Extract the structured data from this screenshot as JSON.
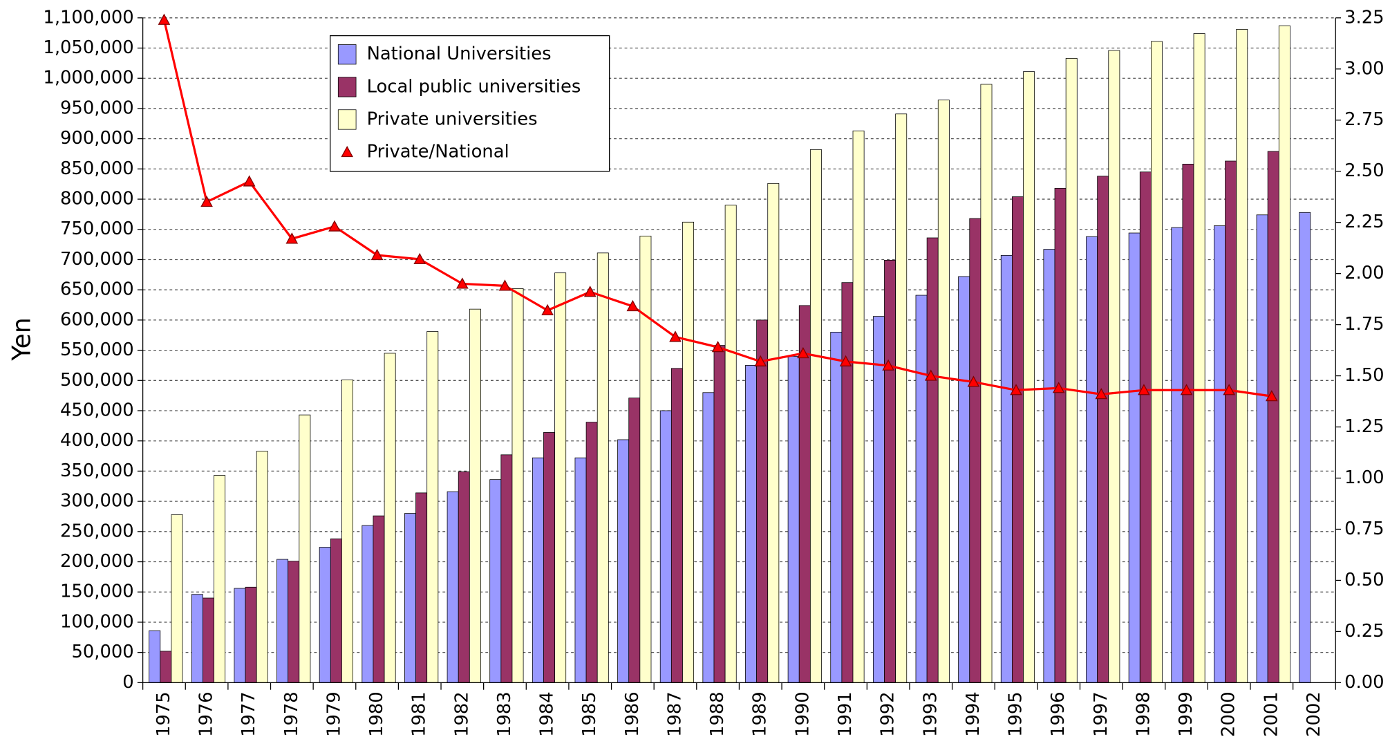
{
  "chart_data": {
    "type": "bar",
    "y_label": "Yen",
    "categories": [
      "1975",
      "1976",
      "1977",
      "1978",
      "1979",
      "1980",
      "1981",
      "1982",
      "1983",
      "1984",
      "1985",
      "1986",
      "1987",
      "1988",
      "1989",
      "1990",
      "1991",
      "1992",
      "1993",
      "1994",
      "1995",
      "1996",
      "1997",
      "1998",
      "1999",
      "2000",
      "2001",
      "2002"
    ],
    "series": [
      {
        "name": "National Universities",
        "color": "#9999ff",
        "type": "bar",
        "values": [
          86000,
          146000,
          156000,
          204000,
          224000,
          260000,
          280000,
          316000,
          336000,
          372000,
          372000,
          402000,
          450000,
          480000,
          525000,
          540000,
          580000,
          606000,
          641000,
          672000,
          707000,
          717000,
          738000,
          744000,
          753000,
          756000,
          774000,
          778000
        ]
      },
      {
        "name": "Local public universities",
        "color": "#993366",
        "type": "bar",
        "values": [
          52000,
          140000,
          158000,
          201000,
          238000,
          276000,
          314000,
          349000,
          377000,
          414000,
          431000,
          471000,
          520000,
          558000,
          600000,
          624000,
          662000,
          699000,
          736000,
          768000,
          804000,
          818000,
          838000,
          845000,
          858000,
          863000,
          879000,
          null
        ]
      },
      {
        "name": "Private universities",
        "color": "#ffffcc",
        "type": "bar",
        "values": [
          278000,
          343000,
          383000,
          443000,
          501000,
          545000,
          581000,
          618000,
          652000,
          678000,
          711000,
          739000,
          762000,
          790000,
          826000,
          882000,
          913000,
          941000,
          964000,
          990000,
          1011000,
          1033000,
          1046000,
          1061000,
          1074000,
          1081000,
          1087000,
          null
        ]
      },
      {
        "name": "Private/National",
        "color": "#ff0000",
        "type": "line",
        "axis": "y2",
        "values": [
          3.24,
          2.35,
          2.45,
          2.17,
          2.23,
          2.09,
          2.07,
          1.95,
          1.94,
          1.82,
          1.91,
          1.84,
          1.69,
          1.64,
          1.57,
          1.61,
          1.57,
          1.55,
          1.5,
          1.47,
          1.43,
          1.44,
          1.41,
          1.43,
          1.43,
          1.43,
          1.4,
          null
        ]
      }
    ],
    "ylim": [
      0,
      1100000
    ],
    "yticks": [
      0,
      {
        "value": 50000,
        "label": "50,000"
      },
      {
        "value": 100000,
        "label": "100,000"
      },
      {
        "value": 150000,
        "label": "150,000"
      },
      {
        "value": 200000,
        "label": "200,000"
      },
      {
        "value": 250000,
        "label": "250,000"
      },
      {
        "value": 300000,
        "label": "300,000"
      },
      {
        "value": 350000,
        "label": "350,000"
      },
      {
        "value": 400000,
        "label": "400,000"
      },
      {
        "value": 450000,
        "label": "450,000"
      },
      {
        "value": 500000,
        "label": "500,000"
      },
      {
        "value": 550000,
        "label": "550,000"
      },
      {
        "value": 600000,
        "label": "600,000"
      },
      {
        "value": 650000,
        "label": "650,000"
      },
      {
        "value": 700000,
        "label": "700,000"
      },
      {
        "value": 750000,
        "label": "750,000"
      },
      {
        "value": 800000,
        "label": "800,000"
      },
      {
        "value": 850000,
        "label": "850,000"
      },
      {
        "value": 900000,
        "label": "900,000"
      },
      {
        "value": 950000,
        "label": "950,000"
      },
      {
        "value": 1000000,
        "label": "1,000,000"
      },
      {
        "value": 1050000,
        "label": "1,050,000"
      },
      {
        "value": 1100000,
        "label": "1,100,000"
      }
    ],
    "y2lim": [
      0,
      3.25
    ],
    "y2ticks": [
      {
        "value": 0,
        "label": "0.00"
      },
      0.25,
      {
        "value": 0.5,
        "label": "0.50"
      },
      0.75,
      {
        "value": 1,
        "label": "1.00"
      },
      1.25,
      {
        "value": 1.5,
        "label": "1.50"
      },
      1.75,
      {
        "value": 2,
        "label": "2.00"
      },
      2.25,
      {
        "value": 2.5,
        "label": "2.50"
      },
      2.75,
      {
        "value": 3,
        "label": "3.00"
      },
      3.25
    ],
    "grid": true,
    "legend": "top-left"
  }
}
